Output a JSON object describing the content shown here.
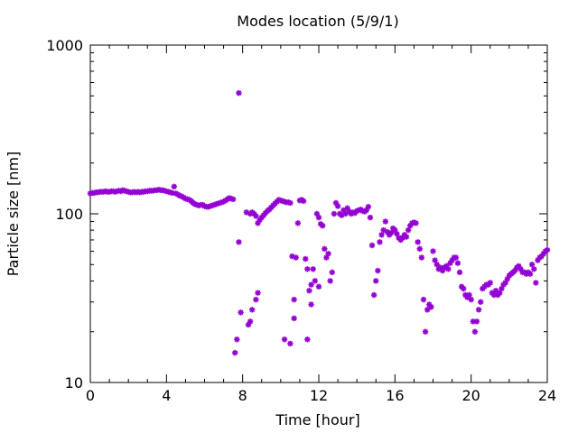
{
  "chart_data": {
    "type": "scatter",
    "title": "Modes location (5/9/1)",
    "xlabel": "Time [hour]",
    "ylabel": "Particle size [nm]",
    "xlim": [
      0,
      24
    ],
    "ylim": [
      10,
      1000
    ],
    "yscale": "log",
    "grid": false,
    "marker_color": "#9400d3",
    "xticks": [
      "0",
      "4",
      "8",
      "12",
      "16",
      "20",
      "24"
    ],
    "yticks": [
      "10",
      "100",
      "1000"
    ],
    "series": [
      {
        "points": [
          [
            0.0,
            132
          ],
          [
            0.1,
            133
          ],
          [
            0.2,
            133
          ],
          [
            0.3,
            134
          ],
          [
            0.4,
            134
          ],
          [
            0.5,
            135
          ],
          [
            0.6,
            135
          ],
          [
            0.7,
            135
          ],
          [
            0.8,
            136
          ],
          [
            0.9,
            135
          ],
          [
            1.0,
            135
          ],
          [
            1.1,
            136
          ],
          [
            1.2,
            136
          ],
          [
            1.3,
            135
          ],
          [
            1.4,
            136
          ],
          [
            1.5,
            137
          ],
          [
            1.6,
            136
          ],
          [
            1.7,
            138
          ],
          [
            1.8,
            137
          ],
          [
            1.9,
            136
          ],
          [
            2.0,
            135
          ],
          [
            2.1,
            134
          ],
          [
            2.2,
            134
          ],
          [
            2.3,
            135
          ],
          [
            2.4,
            134
          ],
          [
            2.5,
            135
          ],
          [
            2.6,
            134
          ],
          [
            2.7,
            135
          ],
          [
            2.8,
            135
          ],
          [
            2.9,
            136
          ],
          [
            3.0,
            136
          ],
          [
            3.1,
            137
          ],
          [
            3.2,
            137
          ],
          [
            3.3,
            137
          ],
          [
            3.4,
            138
          ],
          [
            3.5,
            138
          ],
          [
            3.6,
            139
          ],
          [
            3.7,
            138
          ],
          [
            3.8,
            138
          ],
          [
            3.9,
            137
          ],
          [
            4.0,
            136
          ],
          [
            4.1,
            135
          ],
          [
            4.2,
            134
          ],
          [
            4.3,
            133
          ],
          [
            4.4,
            145
          ],
          [
            4.5,
            132
          ],
          [
            4.6,
            130
          ],
          [
            4.7,
            128
          ],
          [
            4.8,
            127
          ],
          [
            4.9,
            125
          ],
          [
            5.0,
            123
          ],
          [
            5.1,
            122
          ],
          [
            5.2,
            121
          ],
          [
            5.3,
            119
          ],
          [
            5.4,
            116
          ],
          [
            5.5,
            114
          ],
          [
            5.6,
            113
          ],
          [
            5.7,
            112
          ],
          [
            5.8,
            113
          ],
          [
            5.9,
            113
          ],
          [
            6.0,
            111
          ],
          [
            6.1,
            110
          ],
          [
            6.2,
            110
          ],
          [
            6.3,
            111
          ],
          [
            6.4,
            112
          ],
          [
            6.5,
            113
          ],
          [
            6.6,
            114
          ],
          [
            6.7,
            115
          ],
          [
            6.8,
            116
          ],
          [
            6.9,
            117
          ],
          [
            7.0,
            118
          ],
          [
            7.1,
            120
          ],
          [
            7.2,
            122
          ],
          [
            7.3,
            124
          ],
          [
            7.4,
            123
          ],
          [
            7.5,
            122
          ],
          [
            7.6,
            15
          ],
          [
            7.7,
            18
          ],
          [
            7.8,
            520
          ],
          [
            7.8,
            68
          ],
          [
            7.9,
            26
          ],
          [
            8.2,
            102
          ],
          [
            8.3,
            22
          ],
          [
            8.4,
            23
          ],
          [
            8.4,
            100
          ],
          [
            8.5,
            27
          ],
          [
            8.5,
            102
          ],
          [
            8.6,
            100
          ],
          [
            8.7,
            31
          ],
          [
            8.7,
            97
          ],
          [
            8.8,
            34
          ],
          [
            8.8,
            88
          ],
          [
            8.9,
            92
          ],
          [
            9.0,
            95
          ],
          [
            9.1,
            98
          ],
          [
            9.2,
            101
          ],
          [
            9.3,
            104
          ],
          [
            9.4,
            106
          ],
          [
            9.5,
            109
          ],
          [
            9.6,
            112
          ],
          [
            9.7,
            115
          ],
          [
            9.8,
            118
          ],
          [
            9.9,
            121
          ],
          [
            10.0,
            120
          ],
          [
            10.1,
            119
          ],
          [
            10.2,
            18
          ],
          [
            10.2,
            118
          ],
          [
            10.3,
            117
          ],
          [
            10.4,
            117
          ],
          [
            10.5,
            116
          ],
          [
            10.5,
            17
          ],
          [
            10.6,
            56
          ],
          [
            10.7,
            24
          ],
          [
            10.7,
            31
          ],
          [
            10.8,
            55
          ],
          [
            10.9,
            88
          ],
          [
            11.0,
            120
          ],
          [
            11.1,
            121
          ],
          [
            11.2,
            119
          ],
          [
            11.3,
            54
          ],
          [
            11.4,
            18
          ],
          [
            11.4,
            47
          ],
          [
            11.5,
            35
          ],
          [
            11.6,
            29
          ],
          [
            11.6,
            38
          ],
          [
            11.7,
            47
          ],
          [
            11.8,
            40
          ],
          [
            11.9,
            100
          ],
          [
            12.0,
            95
          ],
          [
            12.0,
            37
          ],
          [
            12.1,
            87
          ],
          [
            12.2,
            85
          ],
          [
            12.3,
            62
          ],
          [
            12.4,
            55
          ],
          [
            12.5,
            58
          ],
          [
            12.6,
            40
          ],
          [
            12.7,
            45
          ],
          [
            12.8,
            100
          ],
          [
            12.9,
            116
          ],
          [
            13.0,
            111
          ],
          [
            13.1,
            100
          ],
          [
            13.2,
            98
          ],
          [
            13.3,
            105
          ],
          [
            13.4,
            100
          ],
          [
            13.5,
            108
          ],
          [
            13.6,
            103
          ],
          [
            13.7,
            100
          ],
          [
            13.8,
            102
          ],
          [
            13.9,
            101
          ],
          [
            14.0,
            104
          ],
          [
            14.1,
            105
          ],
          [
            14.2,
            106
          ],
          [
            14.3,
            104
          ],
          [
            14.4,
            103
          ],
          [
            14.5,
            105
          ],
          [
            14.6,
            110
          ],
          [
            14.7,
            95
          ],
          [
            14.8,
            65
          ],
          [
            14.9,
            33
          ],
          [
            15.0,
            40
          ],
          [
            15.1,
            46
          ],
          [
            15.2,
            68
          ],
          [
            15.3,
            75
          ],
          [
            15.4,
            80
          ],
          [
            15.5,
            90
          ],
          [
            15.6,
            78
          ],
          [
            15.7,
            75
          ],
          [
            15.8,
            77
          ],
          [
            15.9,
            82
          ],
          [
            16.0,
            80
          ],
          [
            16.1,
            76
          ],
          [
            16.2,
            72
          ],
          [
            16.3,
            70
          ],
          [
            16.4,
            72
          ],
          [
            16.5,
            75
          ],
          [
            16.6,
            73
          ],
          [
            16.7,
            80
          ],
          [
            16.8,
            85
          ],
          [
            16.9,
            88
          ],
          [
            17.0,
            89
          ],
          [
            17.1,
            88
          ],
          [
            17.2,
            68
          ],
          [
            17.3,
            62
          ],
          [
            17.4,
            55
          ],
          [
            17.5,
            31
          ],
          [
            17.6,
            20
          ],
          [
            17.7,
            27
          ],
          [
            17.8,
            29
          ],
          [
            17.9,
            28
          ],
          [
            18.0,
            60
          ],
          [
            18.1,
            53
          ],
          [
            18.2,
            50
          ],
          [
            18.3,
            47
          ],
          [
            18.4,
            48
          ],
          [
            18.5,
            46
          ],
          [
            18.6,
            48
          ],
          [
            18.7,
            49
          ],
          [
            18.8,
            47
          ],
          [
            18.9,
            51
          ],
          [
            19.0,
            53
          ],
          [
            19.1,
            55
          ],
          [
            19.2,
            55
          ],
          [
            19.3,
            51
          ],
          [
            19.4,
            45
          ],
          [
            19.5,
            37
          ],
          [
            19.6,
            36
          ],
          [
            19.7,
            33
          ],
          [
            19.8,
            32
          ],
          [
            19.9,
            33
          ],
          [
            20.0,
            31
          ],
          [
            20.1,
            23
          ],
          [
            20.2,
            20
          ],
          [
            20.3,
            23
          ],
          [
            20.4,
            27
          ],
          [
            20.5,
            30
          ],
          [
            20.6,
            36
          ],
          [
            20.7,
            37
          ],
          [
            20.8,
            38
          ],
          [
            20.9,
            38
          ],
          [
            21.0,
            39
          ],
          [
            21.1,
            34
          ],
          [
            21.2,
            33
          ],
          [
            21.3,
            35
          ],
          [
            21.4,
            33
          ],
          [
            21.5,
            34
          ],
          [
            21.6,
            36
          ],
          [
            21.7,
            38
          ],
          [
            21.8,
            39
          ],
          [
            21.9,
            41
          ],
          [
            22.0,
            43
          ],
          [
            22.1,
            44
          ],
          [
            22.2,
            45
          ],
          [
            22.3,
            46
          ],
          [
            22.4,
            48
          ],
          [
            22.5,
            49
          ],
          [
            22.6,
            47
          ],
          [
            22.7,
            45
          ],
          [
            22.8,
            45
          ],
          [
            22.9,
            44
          ],
          [
            23.0,
            45
          ],
          [
            23.1,
            44
          ],
          [
            23.2,
            50
          ],
          [
            23.3,
            47
          ],
          [
            23.4,
            39
          ],
          [
            23.5,
            53
          ],
          [
            23.6,
            55
          ],
          [
            23.7,
            56
          ],
          [
            23.8,
            58
          ],
          [
            23.9,
            60
          ],
          [
            24.0,
            61
          ]
        ]
      }
    ]
  }
}
